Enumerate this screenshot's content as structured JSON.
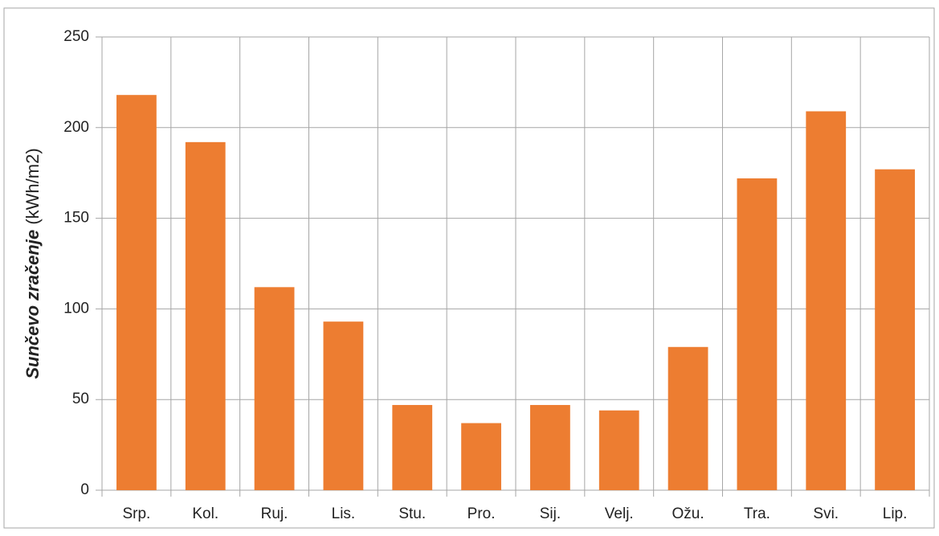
{
  "chart_data": {
    "type": "bar",
    "ylabel": {
      "bold_italic": "Sunčevo zračenje",
      "normal": "(kWh/m2)"
    },
    "categories": [
      "Srp.",
      "Kol.",
      "Ruj.",
      "Lis.",
      "Stu.",
      "Pro.",
      "Sij.",
      "Velj.",
      "Ožu.",
      "Tra.",
      "Svi.",
      "Lip."
    ],
    "values": [
      218,
      192,
      112,
      93,
      47,
      37,
      47,
      44,
      79,
      172,
      209,
      177
    ],
    "color": "#ed7d31",
    "ylim": [
      0,
      250
    ],
    "yticks": [
      0,
      50,
      100,
      150,
      200,
      250
    ],
    "grid": true
  }
}
